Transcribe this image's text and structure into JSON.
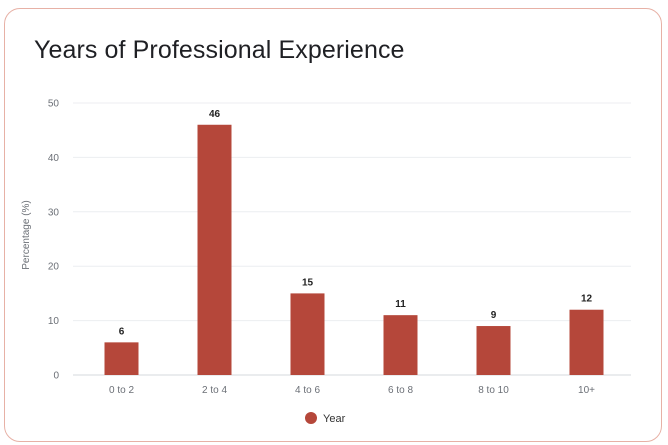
{
  "chart_data": {
    "type": "bar",
    "title": "Years of Professional Experience",
    "ylabel": "Percentage (%)",
    "xlabel": "",
    "categories": [
      "0 to 2",
      "2 to 4",
      "4 to 6",
      "6 to 8",
      "8 to 10",
      "10+"
    ],
    "series": [
      {
        "name": "Year",
        "values": [
          6,
          46,
          15,
          11,
          9,
          12
        ],
        "color": "#b5473a"
      }
    ],
    "ylim": [
      0,
      50
    ],
    "yticks": [
      0,
      10,
      20,
      30,
      40,
      50
    ],
    "grid": true,
    "data_labels": true,
    "legend": "bottom-center"
  }
}
